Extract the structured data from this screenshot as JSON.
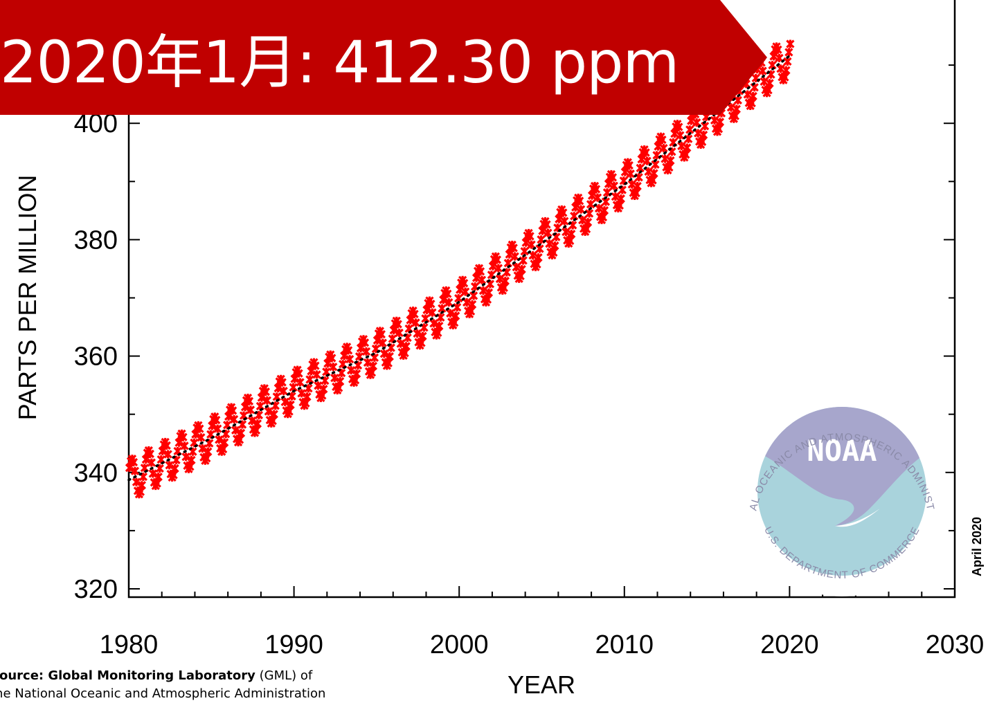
{
  "banner": {
    "text": "2020年1月: 412.30 ppm",
    "background": "#c00000"
  },
  "source_note": {
    "bold": "Source: Global Monitoring Laboratory",
    "normal": " (GML) of",
    "line2": "the National Oceanic and Atmospheric Administration"
  },
  "date_stamp": "April 2020",
  "logo": {
    "name": "noaa-logo",
    "wordmark": "NOAA",
    "top_arc": "NATIONAL OCEANIC AND ATMOSPHERIC ADMINISTRATION",
    "bottom_arc": "U.S. DEPARTMENT OF COMMERCE",
    "colors": {
      "top": "#a7a6cc",
      "bottom": "#a9d3dc"
    }
  },
  "chart_data": {
    "type": "line",
    "title": "",
    "xlabel": "YEAR",
    "ylabel": "PARTS PER MILLION",
    "xlim": [
      1980,
      2030
    ],
    "ylim": [
      320,
      415
    ],
    "x_ticks": [
      1980,
      1990,
      2000,
      2010,
      2020,
      2030
    ],
    "y_ticks": [
      320,
      340,
      360,
      380,
      400
    ],
    "grid": false,
    "series": [
      {
        "kind": "monthly-mean",
        "marker": "cross",
        "color": "#ff0000",
        "x_range": [
          1980.0,
          2020.0
        ],
        "trend_points": [
          {
            "x": 1980,
            "y": 338.7
          },
          {
            "x": 1985,
            "y": 345.9
          },
          {
            "x": 1990,
            "y": 354.0
          },
          {
            "x": 1995,
            "y": 360.6
          },
          {
            "x": 2000,
            "y": 369.3
          },
          {
            "x": 2005,
            "y": 379.4
          },
          {
            "x": 2010,
            "y": 389.5
          },
          {
            "x": 2015,
            "y": 400.5
          },
          {
            "x": 2020,
            "y": 411.6
          }
        ],
        "seasonal_amplitude_ppm": 6.6
      },
      {
        "kind": "seasonally-corrected",
        "color": "#000000",
        "x_range": [
          1980.0,
          2020.0
        ]
      }
    ],
    "last_value": {
      "label": "2020年1月",
      "value": 412.3,
      "unit": "ppm"
    }
  }
}
